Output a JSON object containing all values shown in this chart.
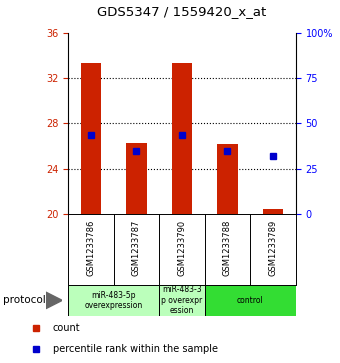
{
  "title": "GDS5347 / 1559420_x_at",
  "samples": [
    "GSM1233786",
    "GSM1233787",
    "GSM1233790",
    "GSM1233788",
    "GSM1233789"
  ],
  "bar_heights": [
    33.35,
    26.3,
    33.35,
    26.2,
    20.45
  ],
  "bar_base": 20.0,
  "percentile_values": [
    27.0,
    25.55,
    27.0,
    25.55,
    25.1
  ],
  "ylim_left": [
    20,
    36
  ],
  "ylim_right": [
    0,
    100
  ],
  "yticks_left": [
    20,
    24,
    28,
    32,
    36
  ],
  "yticks_right": [
    0,
    25,
    50,
    75,
    100
  ],
  "bar_color": "#cc2200",
  "marker_color": "#0000cc",
  "sample_bg_color": "#cccccc",
  "groups": [
    {
      "label": "miR-483-5p\noverexpression",
      "start": 0,
      "end": 2,
      "color": "#bbffbb"
    },
    {
      "label": "miR-483-3\np overexpr\nession",
      "start": 2,
      "end": 3,
      "color": "#bbffbb"
    },
    {
      "label": "control",
      "start": 3,
      "end": 5,
      "color": "#33dd33"
    }
  ],
  "protocol_label": "protocol",
  "legend_count_label": "count",
  "legend_percentile_label": "percentile rank within the sample"
}
